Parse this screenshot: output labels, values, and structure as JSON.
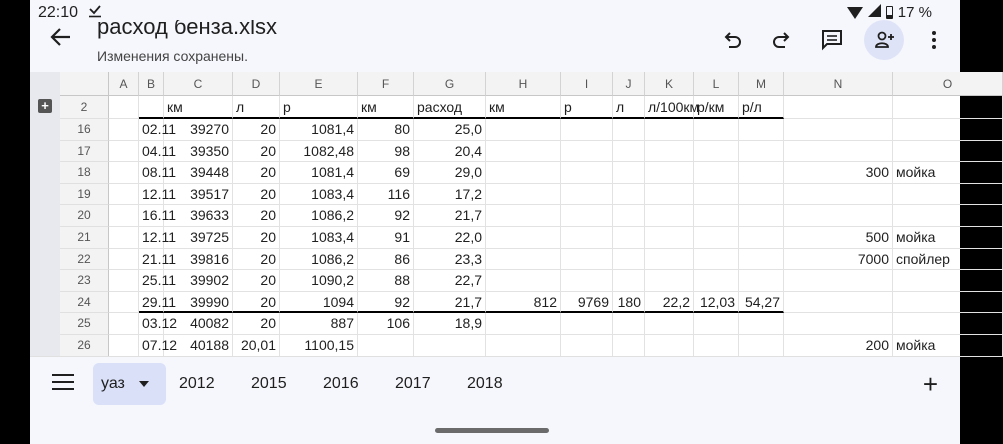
{
  "status_bar": {
    "time": "22:10",
    "battery": "17 %"
  },
  "toolbar": {
    "title": "расход бенза.xlsx",
    "subtitle": "Изменения сохранены."
  },
  "icons": [
    "back-arrow-icon",
    "undo-icon",
    "redo-icon",
    "comment-icon",
    "share-person-add-icon",
    "more-vert-icon"
  ],
  "columns": [
    "A",
    "B",
    "C",
    "D",
    "E",
    "F",
    "G",
    "H",
    "I",
    "J",
    "K",
    "L",
    "M",
    "N",
    "O"
  ],
  "header_row": {
    "num": "2",
    "cells": [
      "",
      "",
      "км",
      "л",
      "р",
      "км",
      "расход",
      "км",
      "р",
      "л",
      "л/100км",
      "р/км",
      "р/л",
      "",
      ""
    ]
  },
  "rows": [
    {
      "num": "16",
      "cells": [
        "",
        "02.11",
        "39270",
        "20",
        "1081,4",
        "80",
        "25,0",
        "",
        "",
        "",
        "",
        "",
        "",
        "",
        ""
      ]
    },
    {
      "num": "17",
      "cells": [
        "",
        "04.11",
        "39350",
        "20",
        "1082,48",
        "98",
        "20,4",
        "",
        "",
        "",
        "",
        "",
        "",
        "",
        ""
      ]
    },
    {
      "num": "18",
      "cells": [
        "",
        "08.11",
        "39448",
        "20",
        "1081,4",
        "69",
        "29,0",
        "",
        "",
        "",
        "",
        "",
        "",
        "300",
        "мойка"
      ]
    },
    {
      "num": "19",
      "cells": [
        "",
        "12.11",
        "39517",
        "20",
        "1083,4",
        "116",
        "17,2",
        "",
        "",
        "",
        "",
        "",
        "",
        "",
        ""
      ]
    },
    {
      "num": "20",
      "cells": [
        "",
        "16.11",
        "39633",
        "20",
        "1086,2",
        "92",
        "21,7",
        "",
        "",
        "",
        "",
        "",
        "",
        "",
        ""
      ]
    },
    {
      "num": "21",
      "cells": [
        "",
        "12.11",
        "39725",
        "20",
        "1083,4",
        "91",
        "22,0",
        "",
        "",
        "",
        "",
        "",
        "",
        "500",
        "мойка"
      ]
    },
    {
      "num": "22",
      "cells": [
        "",
        "21.11",
        "39816",
        "20",
        "1086,2",
        "86",
        "23,3",
        "",
        "",
        "",
        "",
        "",
        "",
        "7000",
        "спойлер"
      ]
    },
    {
      "num": "23",
      "cells": [
        "",
        "25.11",
        "39902",
        "20",
        "1090,2",
        "88",
        "22,7",
        "",
        "",
        "",
        "",
        "",
        "",
        "",
        ""
      ]
    },
    {
      "num": "24",
      "cells": [
        "",
        "29.11",
        "39990",
        "20",
        "1094",
        "92",
        "21,7",
        "812",
        "9769",
        "180",
        "22,2",
        "12,03",
        "54,27",
        "",
        ""
      ]
    },
    {
      "num": "25",
      "cells": [
        "",
        "03.12",
        "40082",
        "20",
        "887",
        "106",
        "18,9",
        "",
        "",
        "",
        "",
        "",
        "",
        "",
        ""
      ]
    },
    {
      "num": "26",
      "cells": [
        "",
        "07.12",
        "40188",
        "20,01",
        "1100,15",
        "",
        "",
        "",
        "",
        "",
        "",
        "",
        "",
        "200",
        "мойка"
      ]
    }
  ],
  "sheet_tabs": [
    "уаз",
    "2012",
    "2015",
    "2016",
    "2017",
    "2018"
  ],
  "active_tab": "уаз"
}
